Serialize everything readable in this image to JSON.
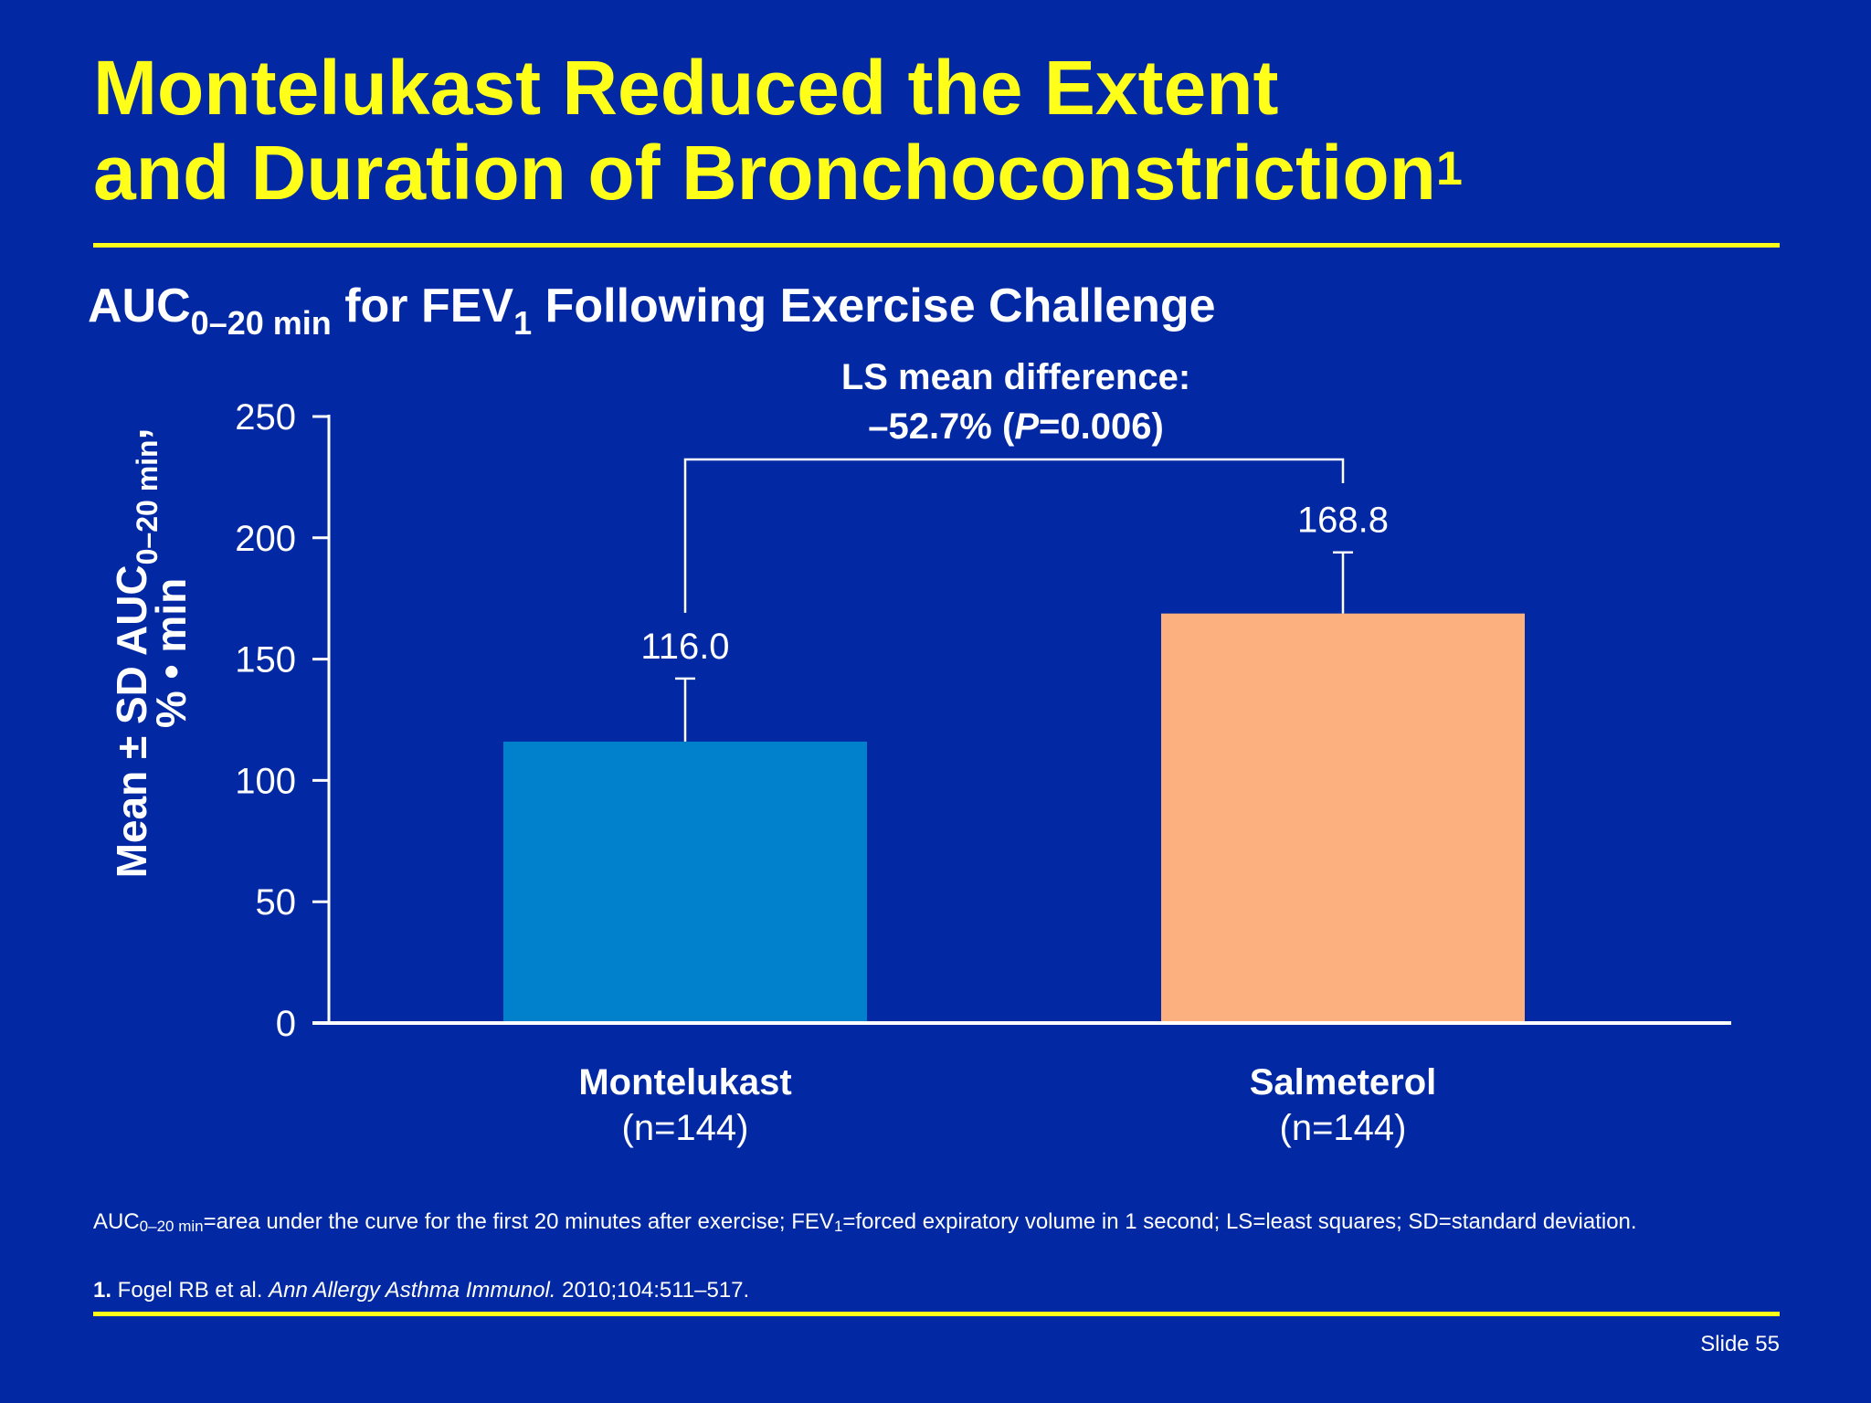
{
  "slide": {
    "title_line1": "Montelukast Reduced the Extent",
    "title_line2": "and Duration of Bronchoconstriction",
    "title_sup": "1",
    "subtitle": {
      "part1": "AUC",
      "sub1": "0–20 min",
      "part2": " for FEV",
      "sub2": "1",
      "part3": " Following Exercise Challenge"
    },
    "footnote": {
      "p1": "AUC",
      "sub1": "0–20 min",
      "p2": "=area under the curve for the first 20 minutes after exercise; FEV",
      "sub2": "1",
      "p3": "=forced expiratory volume in 1 second; LS=least squares; SD=standard deviation."
    },
    "reference": {
      "num": "1.",
      "authors": " Fogel RB et al. ",
      "journal": "Ann Allergy Asthma Immunol.",
      "details": " 2010;104:511–517."
    },
    "slide_number": "Slide 55",
    "colors": {
      "background": "#0229a3",
      "title": "#ffff1a",
      "montelukast_bar": "#0180cb",
      "salmeterol_bar": "#fdb07f"
    }
  },
  "chart_data": {
    "type": "bar",
    "categories": [
      "Montelukast",
      "Salmeterol"
    ],
    "category_sublabels": [
      "(n=144)",
      "(n=144)"
    ],
    "values": [
      116.0,
      168.8
    ],
    "value_labels": [
      "116.0",
      "168.8"
    ],
    "error_upper": [
      142,
      194
    ],
    "bar_colors": [
      "#0180cb",
      "#fdb07f"
    ],
    "ylabel_line1": "Mean ± SD AUC",
    "ylabel_sub": "0–20 min",
    "ylabel_punct": ",",
    "ylabel_line2": "% • min",
    "ylim": [
      0,
      250
    ],
    "yticks": [
      0,
      50,
      100,
      150,
      200,
      250
    ],
    "annotation_line1": "LS mean difference:",
    "annotation_line2_pre": "–52.7% (",
    "annotation_line2_italic": "P",
    "annotation_line2_post": "=0.006)",
    "grid": false
  }
}
